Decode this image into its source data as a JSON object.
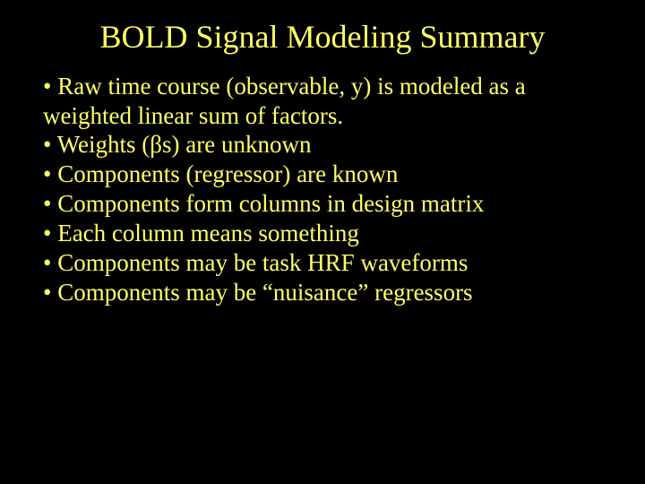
{
  "slide": {
    "background_color": "#000000",
    "text_color": "#ffff66",
    "font_family": "Times New Roman",
    "title": "BOLD Signal Modeling Summary",
    "title_fontsize": 36,
    "body_fontsize": 27,
    "bullets": [
      "• Raw time course (observable, y) is modeled as a weighted linear sum of factors.",
      "• Weights (βs) are unknown",
      "• Components (regressor) are known",
      "• Components form columns in design matrix",
      "• Each column means something",
      "• Components may be task HRF waveforms",
      "• Components may be “nuisance” regressors"
    ]
  }
}
